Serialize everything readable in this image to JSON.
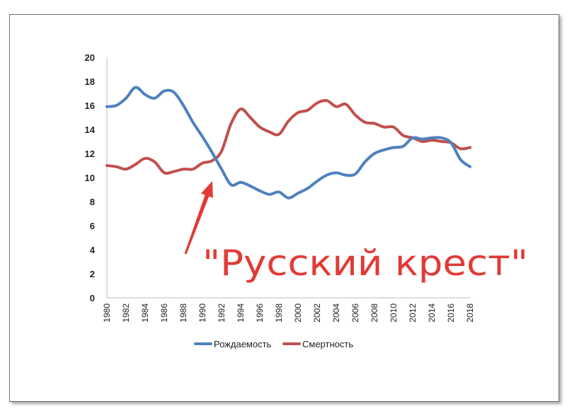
{
  "chart_data": {
    "type": "line",
    "x": [
      1980,
      1981,
      1982,
      1983,
      1984,
      1985,
      1986,
      1987,
      1988,
      1989,
      1990,
      1991,
      1992,
      1993,
      1994,
      1995,
      1996,
      1997,
      1998,
      1999,
      2000,
      2001,
      2002,
      2003,
      2004,
      2005,
      2006,
      2007,
      2008,
      2009,
      2010,
      2011,
      2012,
      2013,
      2014,
      2015,
      2016,
      2017,
      2018
    ],
    "x_tick_labels": [
      "1980",
      "1982",
      "1984",
      "1986",
      "1988",
      "1990",
      "1992",
      "1994",
      "1996",
      "1998",
      "2000",
      "2002",
      "2004",
      "2006",
      "2008",
      "2010",
      "2012",
      "2014",
      "2016",
      "2018"
    ],
    "y_tick_labels": [
      "0",
      "2",
      "4",
      "6",
      "8",
      "10",
      "12",
      "14",
      "16",
      "18",
      "20"
    ],
    "ylim": [
      0,
      20
    ],
    "grid": false,
    "legend_position": "bottom",
    "series": [
      {
        "name": "Рождаемость",
        "color": "#4f81bd",
        "values": [
          15.9,
          16.0,
          16.6,
          17.5,
          16.9,
          16.6,
          17.2,
          17.1,
          16.0,
          14.6,
          13.4,
          12.1,
          10.7,
          9.4,
          9.6,
          9.3,
          8.9,
          8.6,
          8.8,
          8.3,
          8.7,
          9.1,
          9.7,
          10.2,
          10.4,
          10.2,
          10.3,
          11.3,
          12.0,
          12.3,
          12.5,
          12.6,
          13.3,
          13.2,
          13.3,
          13.3,
          12.9,
          11.5,
          10.9
        ]
      },
      {
        "name": "Смертность",
        "color": "#c0504d",
        "values": [
          11.0,
          10.9,
          10.7,
          11.1,
          11.6,
          11.3,
          10.4,
          10.5,
          10.7,
          10.7,
          11.2,
          11.4,
          12.2,
          14.5,
          15.7,
          15.0,
          14.2,
          13.8,
          13.6,
          14.7,
          15.4,
          15.6,
          16.2,
          16.4,
          15.9,
          16.1,
          15.2,
          14.6,
          14.5,
          14.2,
          14.2,
          13.5,
          13.3,
          13.0,
          13.1,
          13.0,
          12.9,
          12.4,
          12.5
        ]
      }
    ],
    "annotation": {
      "text": "\"Русский крест\"",
      "color": "#e23a36"
    }
  }
}
